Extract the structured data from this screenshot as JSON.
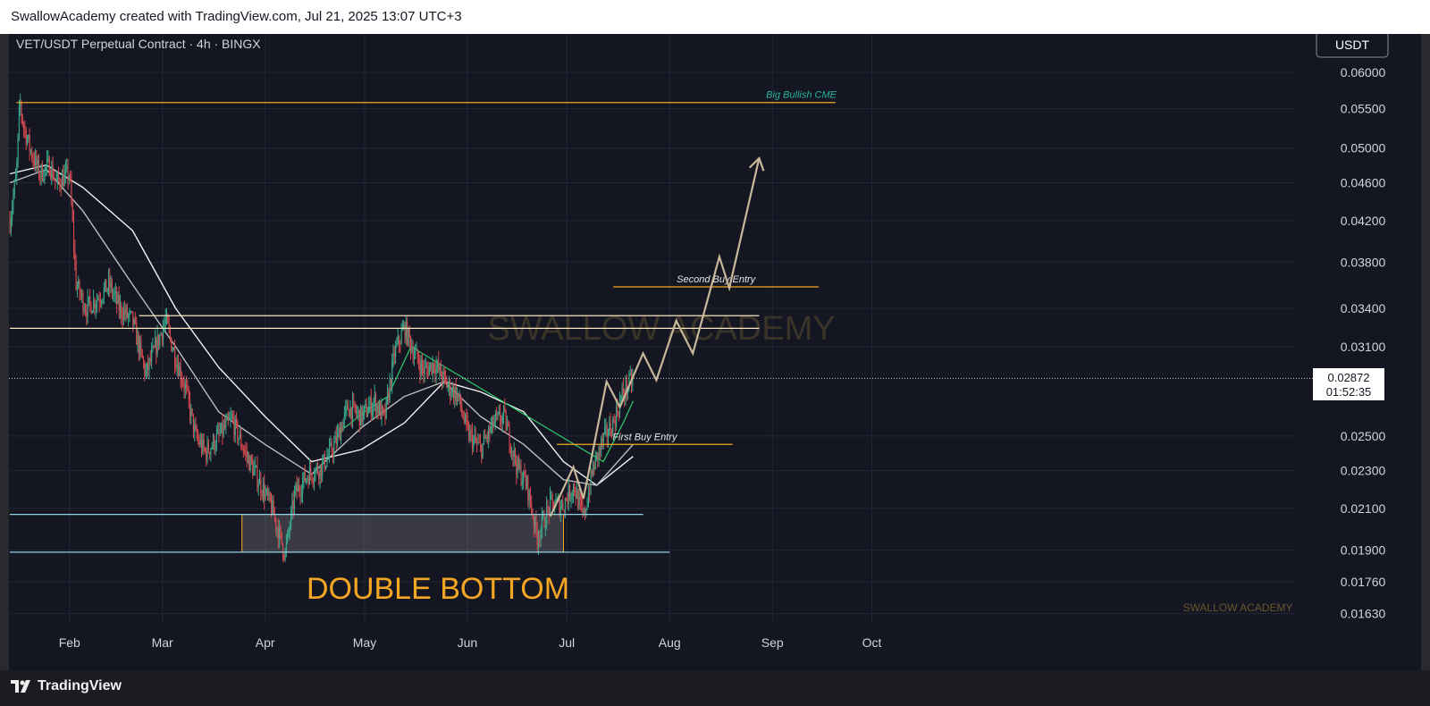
{
  "header": {
    "attribution": "SwallowAcademy created with TradingView.com, Jul 21, 2025 13:07 UTC+3"
  },
  "footer": {
    "brand": "TradingView"
  },
  "colors": {
    "background": "#141622",
    "grid": "#232636",
    "candle_up": "#3aa88a",
    "candle_down": "#d4494f",
    "level_orange": "#f5a623",
    "level_light": "#f6e7c0",
    "level_cyan": "#8fd3e8",
    "projection": "#c8b89a",
    "ma_white": "#f2f2f2",
    "ma_grey": "#bdbdbd",
    "ma_green": "#2ecc71"
  },
  "chart_data": {
    "type": "candlestick",
    "title": "VET/USDT Perpetual Contract · 4h · BINGX",
    "currency": "USDT",
    "scale": "log",
    "ylim": [
      0.0158,
      0.0625
    ],
    "x_tick_labels": [
      "Feb",
      "Mar",
      "Apr",
      "May",
      "Jun",
      "Jul",
      "Aug",
      "Sep",
      "Oct"
    ],
    "y_tick_labels": [
      "0.06000",
      "0.05500",
      "0.05000",
      "0.04600",
      "0.04200",
      "0.03800",
      "0.03400",
      "0.03100",
      "0.02500",
      "0.02300",
      "0.02100",
      "0.01900",
      "0.01760",
      "0.01630"
    ],
    "y_ticks": [
      0.06,
      0.055,
      0.05,
      0.046,
      0.042,
      0.038,
      0.034,
      0.031,
      0.025,
      0.023,
      0.021,
      0.019,
      0.0176,
      0.0163
    ],
    "last_price": "0.02872",
    "countdown": "01:52:35",
    "price_path": [
      [
        "2025-01-14",
        0.042
      ],
      [
        "2025-01-16",
        0.047
      ],
      [
        "2025-01-17",
        0.056
      ],
      [
        "2025-01-18",
        0.053
      ],
      [
        "2025-01-20",
        0.05
      ],
      [
        "2025-01-23",
        0.047
      ],
      [
        "2025-01-26",
        0.048
      ],
      [
        "2025-01-28",
        0.046
      ],
      [
        "2025-02-01",
        0.047
      ],
      [
        "2025-02-03",
        0.036
      ],
      [
        "2025-02-06",
        0.034
      ],
      [
        "2025-02-10",
        0.035
      ],
      [
        "2025-02-13",
        0.036
      ],
      [
        "2025-02-16",
        0.034
      ],
      [
        "2025-02-20",
        0.033
      ],
      [
        "2025-02-24",
        0.029
      ],
      [
        "2025-02-27",
        0.031
      ],
      [
        "2025-03-02",
        0.033
      ],
      [
        "2025-03-04",
        0.031
      ],
      [
        "2025-03-08",
        0.028
      ],
      [
        "2025-03-11",
        0.025
      ],
      [
        "2025-03-14",
        0.024
      ],
      [
        "2025-03-18",
        0.025
      ],
      [
        "2025-03-22",
        0.026
      ],
      [
        "2025-03-26",
        0.024
      ],
      [
        "2025-03-30",
        0.0225
      ],
      [
        "2025-04-03",
        0.021
      ],
      [
        "2025-04-07",
        0.0188
      ],
      [
        "2025-04-10",
        0.0218
      ],
      [
        "2025-04-14",
        0.0228
      ],
      [
        "2025-04-18",
        0.0232
      ],
      [
        "2025-04-22",
        0.0245
      ],
      [
        "2025-04-26",
        0.0268
      ],
      [
        "2025-04-30",
        0.0262
      ],
      [
        "2025-05-04",
        0.0272
      ],
      [
        "2025-05-07",
        0.026
      ],
      [
        "2025-05-10",
        0.0305
      ],
      [
        "2025-05-13",
        0.0325
      ],
      [
        "2025-05-16",
        0.0305
      ],
      [
        "2025-05-19",
        0.0292
      ],
      [
        "2025-05-22",
        0.0298
      ],
      [
        "2025-05-26",
        0.0282
      ],
      [
        "2025-05-29",
        0.0276
      ],
      [
        "2025-06-01",
        0.0252
      ],
      [
        "2025-06-05",
        0.0242
      ],
      [
        "2025-06-09",
        0.0258
      ],
      [
        "2025-06-12",
        0.0262
      ],
      [
        "2025-06-16",
        0.0232
      ],
      [
        "2025-06-19",
        0.0222
      ],
      [
        "2025-06-22",
        0.0196
      ],
      [
        "2025-06-26",
        0.0212
      ],
      [
        "2025-06-30",
        0.0212
      ],
      [
        "2025-07-03",
        0.0222
      ],
      [
        "2025-07-06",
        0.0205
      ],
      [
        "2025-07-09",
        0.0232
      ],
      [
        "2025-07-12",
        0.0248
      ],
      [
        "2025-07-15",
        0.0258
      ],
      [
        "2025-07-18",
        0.0278
      ],
      [
        "2025-07-21",
        0.0287
      ]
    ],
    "moving_averages": [
      {
        "color": "white",
        "points": [
          [
            "2025-01-14",
            0.047
          ],
          [
            "2025-01-25",
            0.048
          ],
          [
            "2025-02-05",
            0.0455
          ],
          [
            "2025-02-20",
            0.041
          ],
          [
            "2025-03-05",
            0.034
          ],
          [
            "2025-03-18",
            0.0295
          ],
          [
            "2025-04-01",
            0.0262
          ],
          [
            "2025-04-15",
            0.0235
          ],
          [
            "2025-04-30",
            0.0242
          ],
          [
            "2025-05-13",
            0.0258
          ],
          [
            "2025-05-25",
            0.0285
          ],
          [
            "2025-06-05",
            0.0278
          ],
          [
            "2025-06-18",
            0.0265
          ],
          [
            "2025-06-30",
            0.0235
          ],
          [
            "2025-07-10",
            0.0222
          ],
          [
            "2025-07-21",
            0.0238
          ]
        ]
      },
      {
        "color": "grey",
        "points": [
          [
            "2025-01-14",
            0.046
          ],
          [
            "2025-01-25",
            0.0475
          ],
          [
            "2025-02-05",
            0.043
          ],
          [
            "2025-02-20",
            0.036
          ],
          [
            "2025-03-05",
            0.031
          ],
          [
            "2025-03-18",
            0.0265
          ],
          [
            "2025-04-01",
            0.0245
          ],
          [
            "2025-04-15",
            0.0228
          ],
          [
            "2025-04-30",
            0.0255
          ],
          [
            "2025-05-13",
            0.0275
          ],
          [
            "2025-05-25",
            0.0285
          ],
          [
            "2025-06-05",
            0.0262
          ],
          [
            "2025-06-18",
            0.0245
          ],
          [
            "2025-06-30",
            0.0225
          ],
          [
            "2025-07-10",
            0.0222
          ],
          [
            "2025-07-21",
            0.0245
          ]
        ]
      },
      {
        "color": "green",
        "points": [
          [
            "2025-04-25",
            0.0255
          ],
          [
            "2025-05-01",
            0.0265
          ],
          [
            "2025-05-08",
            0.0275
          ],
          [
            "2025-05-15",
            0.031
          ],
          [
            "2025-07-12",
            0.0235
          ],
          [
            "2025-07-18",
            0.0258
          ],
          [
            "2025-07-21",
            0.0272
          ]
        ]
      }
    ],
    "levels": [
      {
        "label": "Big Bullish CME",
        "price": 0.0558,
        "from": "2025-01-16",
        "to": "2025-09-20",
        "color": "orange"
      },
      {
        "label": "Second Buy Entry",
        "price": 0.0358,
        "from": "2025-07-15",
        "to": "2025-09-15",
        "color": "orange"
      },
      {
        "label": "",
        "price": 0.0334,
        "from": "2025-02-22",
        "to": "2025-08-28",
        "color": "light"
      },
      {
        "label": "",
        "price": 0.0324,
        "from": "2025-01-14",
        "to": "2025-08-28",
        "color": "light"
      },
      {
        "label": "First Buy Entry",
        "price": 0.0245,
        "from": "2025-06-28",
        "to": "2025-08-20",
        "color": "orange"
      },
      {
        "label": "",
        "price": 0.0207,
        "from": "2025-01-14",
        "to": "2025-07-24",
        "color": "cyan"
      },
      {
        "label": "",
        "price": 0.0189,
        "from": "2025-01-14",
        "to": "2025-08-01",
        "color": "cyan"
      }
    ],
    "zone": {
      "label": "DOUBLE BOTTOM",
      "top": 0.0207,
      "bottom": 0.0189,
      "from": "2025-03-25",
      "to": "2025-06-30"
    },
    "projection": [
      [
        "2025-06-26",
        0.0206
      ],
      [
        "2025-07-03",
        0.0232
      ],
      [
        "2025-07-06",
        0.0215
      ],
      [
        "2025-07-13",
        0.0285
      ],
      [
        "2025-07-17",
        0.0268
      ],
      [
        "2025-07-24",
        0.0305
      ],
      [
        "2025-07-28",
        0.0286
      ],
      [
        "2025-08-03",
        0.033
      ],
      [
        "2025-08-08",
        0.0305
      ],
      [
        "2025-08-16",
        0.0385
      ],
      [
        "2025-08-19",
        0.0357
      ],
      [
        "2025-08-28",
        0.0488
      ]
    ],
    "watermark": "SWALLOW ACADEMY"
  }
}
